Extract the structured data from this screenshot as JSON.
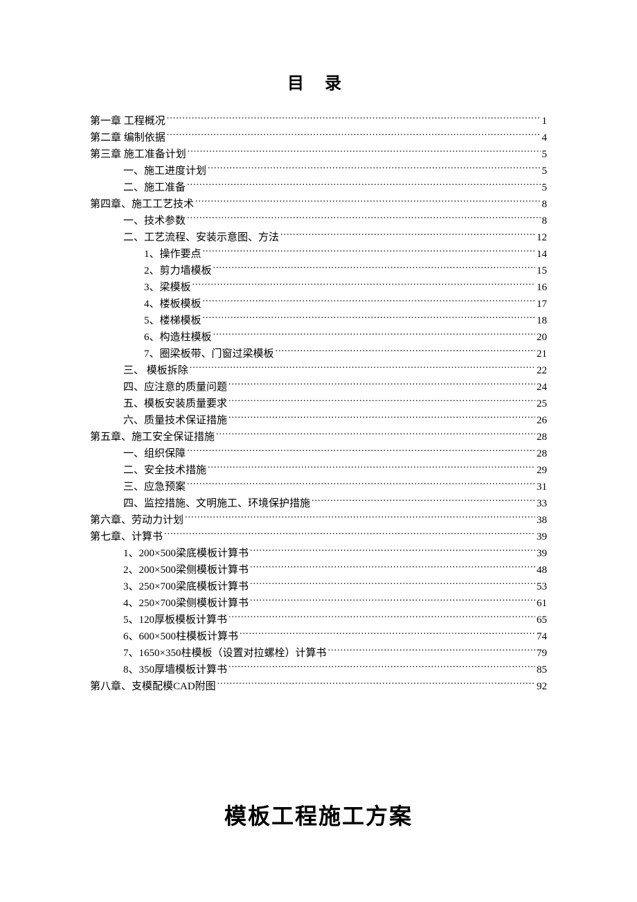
{
  "toc_title": "目 录",
  "doc_title": "模板工程施工方案",
  "style": {
    "background": "#ffffff",
    "text_color": "#000000",
    "title_fontsize": 24,
    "body_fontsize": 15,
    "doc_title_fontsize": 32,
    "font_family": "SimSun"
  },
  "entries": [
    {
      "label": "第一章 工程概况",
      "page": "1",
      "indent": 0
    },
    {
      "label": "第二章 编制依据",
      "page": "4",
      "indent": 0
    },
    {
      "label": "第三章 施工准备计划",
      "page": "5",
      "indent": 0
    },
    {
      "label": "一、施工进度计划",
      "page": "5",
      "indent": 1
    },
    {
      "label": "二、施工准备",
      "page": "5",
      "indent": 1
    },
    {
      "label": "第四章、施工工艺技术",
      "page": "8",
      "indent": 0
    },
    {
      "label": "一、技术参数",
      "page": "8",
      "indent": 1
    },
    {
      "label": "二、工艺流程、安装示意图、方法",
      "page": "12",
      "indent": 1
    },
    {
      "label": "1、操作要点",
      "page": "14",
      "indent": 2
    },
    {
      "label": "2、剪力墙模板",
      "page": "15",
      "indent": 2
    },
    {
      "label": "3、梁模板",
      "page": "16",
      "indent": 2
    },
    {
      "label": "4、楼板模板",
      "page": "17",
      "indent": 2
    },
    {
      "label": "5、楼梯模板",
      "page": "18",
      "indent": 2
    },
    {
      "label": "6、构造柱模板",
      "page": "20",
      "indent": 2
    },
    {
      "label": "7、圈梁板带、门窗过梁模板",
      "page": "21",
      "indent": 2
    },
    {
      "label": "三、 模板拆除",
      "page": "22",
      "indent": 1
    },
    {
      "label": "四、应注意的质量问题",
      "page": "24",
      "indent": 1
    },
    {
      "label": "五、模板安装质量要求",
      "page": "25",
      "indent": 1
    },
    {
      "label": "六、质量技术保证措施",
      "page": "26",
      "indent": 1
    },
    {
      "label": "第五章、施工安全保证措施",
      "page": "28",
      "indent": 0
    },
    {
      "label": "一、组织保障",
      "page": "28",
      "indent": 1
    },
    {
      "label": "二、安全技术措施",
      "page": "29",
      "indent": 1
    },
    {
      "label": "三、应急预案",
      "page": "31",
      "indent": 1
    },
    {
      "label": "四、监控措施、文明施工、环境保护措施",
      "page": "33",
      "indent": 1
    },
    {
      "label": "第六章、劳动力计划",
      "page": "38",
      "indent": 0
    },
    {
      "label": "第七章、计算书",
      "page": "39",
      "indent": 0
    },
    {
      "label": "1、200×500梁底模板计算书",
      "page": "39",
      "indent": 1
    },
    {
      "label": "2、200×500梁侧模板计算书",
      "page": "48",
      "indent": 1
    },
    {
      "label": "3、250×700梁底模板计算书",
      "page": "53",
      "indent": 1
    },
    {
      "label": "4、250×700梁侧模板计算书",
      "page": "61",
      "indent": 1
    },
    {
      "label": "5、120厚板模板计算书",
      "page": "65",
      "indent": 1
    },
    {
      "label": "6、600×500柱模板计算书",
      "page": "74",
      "indent": 1
    },
    {
      "label": "7、1650×350柱模板（设置对拉螺栓）计算书",
      "page": "79",
      "indent": 1
    },
    {
      "label": "8、350厚墙模板计算书",
      "page": "85",
      "indent": 1
    },
    {
      "label": "第八章、支模配模CAD附图",
      "page": "92",
      "indent": 0
    }
  ]
}
